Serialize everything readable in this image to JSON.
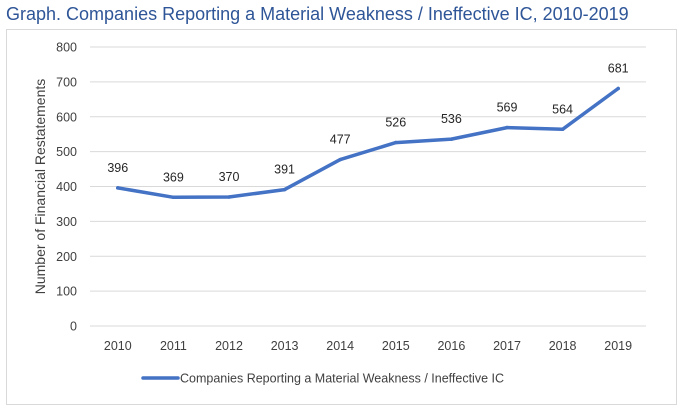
{
  "page": {
    "title": "Graph. Companies Reporting a Material Weakness / Ineffective IC, 2010-2019"
  },
  "chart_data": {
    "type": "line",
    "title": "",
    "xlabel": "",
    "ylabel": "Number of Financial Restatements",
    "categories": [
      "2010",
      "2011",
      "2012",
      "2013",
      "2014",
      "2015",
      "2016",
      "2017",
      "2018",
      "2019"
    ],
    "series": [
      {
        "name": "Companies Reporting a Material Weakness / Ineffective IC",
        "values": [
          396,
          369,
          370,
          391,
          477,
          526,
          536,
          569,
          564,
          681
        ],
        "color": "#4472c4"
      }
    ],
    "ylim": [
      0,
      800
    ],
    "yticks": [
      0,
      100,
      200,
      300,
      400,
      500,
      600,
      700,
      800
    ],
    "grid": "horizontal",
    "data_labels": true,
    "legend_position": "bottom"
  }
}
